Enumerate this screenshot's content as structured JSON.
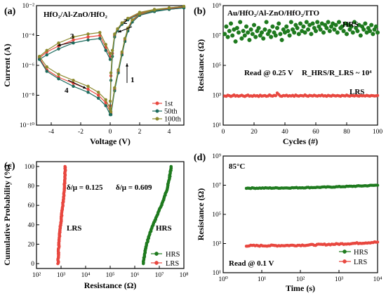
{
  "chart_data": [
    {
      "type": "line",
      "panel_label": "(a)",
      "title": "HfO₂/Al-ZnO/HfO₂",
      "xlabel": "Voltage (V)",
      "ylabel": "Current (A)",
      "xlim": [
        -5,
        5
      ],
      "ylim_log10": [
        -10,
        -2
      ],
      "x_ticks": [
        "-4",
        "-2",
        "0",
        "2",
        "4"
      ],
      "y_ticks": [
        "10⁻¹⁰",
        "10⁻⁸",
        "10⁻⁶",
        "10⁻⁴",
        "10⁻²"
      ],
      "annotations": [
        "1",
        "2",
        "3",
        "4"
      ],
      "legend_position": "bottom-right",
      "series": [
        {
          "name": "1st",
          "color": "#e8473f",
          "set": [
            [
              0.05,
              -9.2
            ],
            [
              0.3,
              -7.6
            ],
            [
              0.55,
              -6.4
            ],
            [
              0.8,
              -5.2
            ],
            [
              1.0,
              -4.3
            ],
            [
              1.2,
              -3.6
            ],
            [
              1.5,
              -3.0
            ],
            [
              2.0,
              -2.6
            ],
            [
              3,
              -2.35
            ],
            [
              4,
              -2.2
            ],
            [
              5,
              -2.1
            ]
          ],
          "return": [
            [
              5,
              -2.1
            ],
            [
              4,
              -2.2
            ],
            [
              3,
              -2.3
            ],
            [
              2,
              -2.5
            ],
            [
              1.2,
              -2.9
            ],
            [
              0.8,
              -3.2
            ],
            [
              0.5,
              -3.6
            ],
            [
              0.3,
              -4.0
            ],
            [
              0.15,
              -5.2
            ],
            [
              0.05,
              -6.7
            ],
            [
              0,
              -8.7
            ]
          ],
          "hrs_upper": [
            [
              0,
              -5.4
            ],
            [
              -0.3,
              -4.8
            ],
            [
              -0.7,
              -4.0
            ],
            [
              -1.5,
              -4.1
            ],
            [
              -2.5,
              -4.3
            ],
            [
              -3.5,
              -4.7
            ],
            [
              -4.3,
              -5.1
            ],
            [
              -4.8,
              -5.5
            ]
          ],
          "hrs_lower": [
            [
              -4.8,
              -5.5
            ],
            [
              -4.3,
              -6.3
            ],
            [
              -3.5,
              -6.8
            ],
            [
              -2.5,
              -7.2
            ],
            [
              -1.5,
              -7.6
            ],
            [
              -0.8,
              -8.0
            ],
            [
              -0.3,
              -8.5
            ],
            [
              0,
              -9.1
            ]
          ]
        },
        {
          "name": "50th",
          "color": "#1d6b5e",
          "set": [
            [
              0.05,
              -9.3
            ],
            [
              0.3,
              -7.7
            ],
            [
              0.55,
              -6.5
            ],
            [
              0.8,
              -5.3
            ],
            [
              1.0,
              -4.4
            ],
            [
              1.2,
              -3.7
            ],
            [
              1.5,
              -3.1
            ],
            [
              2.0,
              -2.65
            ],
            [
              3,
              -2.4
            ],
            [
              4,
              -2.25
            ],
            [
              5,
              -2.15
            ]
          ],
          "return": [
            [
              5,
              -2.15
            ],
            [
              4,
              -2.25
            ],
            [
              3,
              -2.35
            ],
            [
              2,
              -2.55
            ],
            [
              1.2,
              -2.95
            ],
            [
              0.8,
              -3.25
            ],
            [
              0.5,
              -3.65
            ],
            [
              0.3,
              -4.1
            ],
            [
              0.15,
              -5.4
            ],
            [
              0.05,
              -7.0
            ],
            [
              0,
              -9.1
            ]
          ],
          "hrs_upper": [
            [
              0,
              -5.6
            ],
            [
              -0.3,
              -5.0
            ],
            [
              -0.7,
              -4.2
            ],
            [
              -1.5,
              -4.3
            ],
            [
              -2.5,
              -4.5
            ],
            [
              -3.5,
              -4.9
            ],
            [
              -4.3,
              -5.3
            ],
            [
              -4.8,
              -5.6
            ]
          ],
          "hrs_lower": [
            [
              -4.8,
              -5.6
            ],
            [
              -4.3,
              -6.4
            ],
            [
              -3.5,
              -6.9
            ],
            [
              -2.5,
              -7.4
            ],
            [
              -1.5,
              -7.8
            ],
            [
              -0.8,
              -8.2
            ],
            [
              -0.3,
              -8.7
            ],
            [
              0,
              -9.3
            ]
          ]
        },
        {
          "name": "100th",
          "color": "#8c8a2e",
          "set": [
            [
              0.05,
              -9.1
            ],
            [
              0.3,
              -7.5
            ],
            [
              0.55,
              -6.3
            ],
            [
              0.8,
              -5.1
            ],
            [
              1.0,
              -4.2
            ],
            [
              1.2,
              -3.5
            ],
            [
              1.5,
              -2.95
            ],
            [
              2.0,
              -2.55
            ],
            [
              3,
              -2.3
            ],
            [
              4,
              -2.15
            ],
            [
              5,
              -2.05
            ]
          ],
          "return": [
            [
              5,
              -2.05
            ],
            [
              4,
              -2.15
            ],
            [
              3,
              -2.25
            ],
            [
              2,
              -2.45
            ],
            [
              1.2,
              -2.85
            ],
            [
              0.8,
              -3.15
            ],
            [
              0.5,
              -3.55
            ],
            [
              0.3,
              -3.9
            ],
            [
              0.15,
              -5.0
            ],
            [
              0.05,
              -6.5
            ],
            [
              0,
              -8.4
            ]
          ],
          "hrs_upper": [
            [
              0,
              -5.2
            ],
            [
              -0.3,
              -4.6
            ],
            [
              -0.7,
              -3.8
            ],
            [
              -1.5,
              -3.9
            ],
            [
              -2.5,
              -4.1
            ],
            [
              -3.5,
              -4.5
            ],
            [
              -4.3,
              -5.0
            ],
            [
              -4.8,
              -5.4
            ]
          ],
          "hrs_lower": [
            [
              -4.8,
              -5.4
            ],
            [
              -4.3,
              -6.1
            ],
            [
              -3.5,
              -6.6
            ],
            [
              -2.5,
              -7.0
            ],
            [
              -1.5,
              -7.4
            ],
            [
              -0.8,
              -7.8
            ],
            [
              -0.3,
              -8.3
            ],
            [
              0,
              -8.9
            ]
          ]
        }
      ]
    },
    {
      "type": "scatter",
      "panel_label": "(b)",
      "title": "Au/HfO₂/Al-ZnO/HfO₂/ITO",
      "xlabel": "Cycles (#)",
      "ylabel": "Resistance (Ω)",
      "xlim": [
        0,
        100
      ],
      "ylim_log10": [
        1,
        9
      ],
      "x_ticks": [
        "0",
        "20",
        "40",
        "60",
        "80",
        "100"
      ],
      "y_ticks": [
        "10¹",
        "10³",
        "10⁵",
        "10⁷",
        "10⁹"
      ],
      "annotations": [
        "Read @ 0.25 V",
        "R_HRS/R_LRS ~ 10⁴"
      ],
      "series": [
        {
          "name": "HRS",
          "color": "#1e7a1e",
          "log10_values": [
            7.1,
            7.6,
            6.9,
            7.3,
            7.8,
            7.0,
            7.4,
            6.6,
            7.5,
            7.2,
            7.9,
            6.8,
            7.3,
            7.0,
            7.6,
            7.2,
            6.7,
            7.4,
            7.1,
            7.7,
            6.9,
            7.3,
            7.5,
            7.0,
            7.2,
            6.8,
            7.4,
            7.9,
            7.1,
            7.3,
            6.9,
            7.6,
            7.2,
            7.0,
            7.5,
            7.8,
            7.1,
            6.7,
            7.4,
            7.2,
            7.6,
            7.3,
            7.0,
            7.9,
            7.4,
            7.2,
            7.7,
            7.5,
            7.1,
            7.8,
            7.3,
            7.6,
            7.2,
            7.9,
            7.4,
            7.7,
            7.1,
            7.8,
            7.5,
            7.3,
            7.9,
            7.6,
            7.4,
            7.8,
            7.2,
            7.7,
            7.5,
            7.9,
            7.3,
            7.6,
            7.8,
            7.4,
            7.7,
            7.2,
            7.9,
            7.5,
            7.6,
            7.3,
            7.8,
            7.1,
            7.7,
            7.4,
            7.6,
            7.2,
            7.9,
            7.5,
            7.3,
            7.7,
            7.0,
            7.6,
            7.4,
            7.8,
            7.2,
            7.5,
            7.3,
            7.7,
            7.1,
            7.4,
            7.6,
            7.2
          ]
        },
        {
          "name": "LRS",
          "color": "#e8473f",
          "log10_values": [
            2.95,
            2.93,
            3.0,
            2.97,
            2.92,
            2.96,
            3.02,
            2.94,
            2.98,
            2.93,
            2.96,
            3.0,
            2.95,
            2.92,
            2.97,
            3.01,
            2.94,
            2.96,
            2.93,
            2.99,
            2.95,
            2.97,
            2.92,
            3.0,
            2.94,
            2.96,
            2.98,
            2.93,
            2.95,
            3.02,
            2.96,
            2.94,
            2.99,
            2.97,
            3.15,
            3.05,
            2.95,
            2.93,
            2.98,
            2.96,
            3.0,
            2.94,
            2.97,
            2.95,
            2.99,
            2.93,
            3.01,
            2.96,
            2.94,
            2.98,
            2.97,
            2.95,
            3.02,
            2.96,
            2.93,
            2.99,
            2.97,
            2.95,
            3.0,
            2.96,
            2.94,
            2.98,
            2.96,
            3.01,
            2.95,
            2.97,
            2.93,
            2.99,
            2.96,
            2.94,
            3.0,
            2.97,
            2.95,
            2.98,
            2.96,
            2.93,
            2.99,
            2.97,
            2.95,
            3.01,
            2.96,
            2.94,
            2.98,
            2.97,
            2.95,
            3.0,
            2.96,
            2.94,
            2.98,
            2.96,
            2.97,
            2.95,
            2.99,
            2.96,
            2.94,
            2.98,
            2.97,
            2.95,
            2.96,
            2.98
          ]
        }
      ],
      "series_labels": [
        "HRS",
        "LRS"
      ]
    },
    {
      "type": "scatter",
      "panel_label": "(c)",
      "xlabel": "Resistance (Ω)",
      "ylabel": "Cumulative Probability (%)",
      "xlim_log10": [
        2,
        8
      ],
      "ylim": [
        -5,
        105
      ],
      "x_ticks": [
        "10²",
        "10³",
        "10⁴",
        "10⁵",
        "10⁶",
        "10⁷",
        "10⁸"
      ],
      "y_ticks": [
        "0",
        "20",
        "40",
        "60",
        "80",
        "100"
      ],
      "annotations": [
        {
          "text": "δ/μ = 0.125",
          "color": "#e8473f"
        },
        {
          "text": "δ/μ = 0.609",
          "color": "#1e7a1e"
        },
        {
          "text": "LRS",
          "color": "#000000"
        },
        {
          "text": "HRS",
          "color": "#000000"
        }
      ],
      "legend_position": "bottom-right",
      "series": [
        {
          "name": "HRS",
          "color": "#1e7a1e",
          "log10_start": 6.35,
          "log10_end": 7.48
        },
        {
          "name": "LRS",
          "color": "#e8473f",
          "log10_start": 2.88,
          "log10_end": 3.17
        }
      ]
    },
    {
      "type": "scatter",
      "panel_label": "(d)",
      "title": "85°C",
      "xlabel": "Time (s)",
      "ylabel": "Resistance (Ω)",
      "xlim_log10": [
        0,
        4
      ],
      "ylim_log10": [
        1,
        9
      ],
      "x_ticks": [
        "10⁰",
        "10¹",
        "10²",
        "10³",
        "10⁴"
      ],
      "y_ticks": [
        "10¹",
        "10³",
        "10⁵",
        "10⁷",
        "10⁹"
      ],
      "annotations": [
        "Read @ 0.1 V"
      ],
      "legend_position": "bottom-right",
      "series": [
        {
          "name": "HRS",
          "color": "#1e7a1e",
          "log10_time": [
            0.6,
            4
          ],
          "log10_values_start": 6.8,
          "log10_values_end": 7.0
        },
        {
          "name": "LRS",
          "color": "#e8473f",
          "log10_time": [
            0.6,
            4
          ],
          "log10_values_start": 2.85,
          "log10_values_end": 3.1
        }
      ]
    }
  ]
}
